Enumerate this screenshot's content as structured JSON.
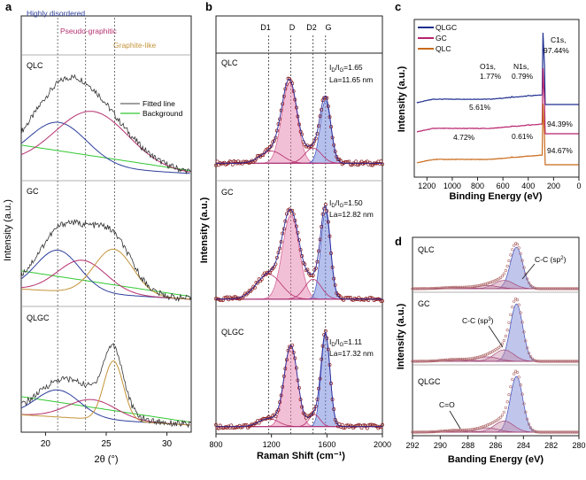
{
  "chart_data": [
    {
      "panel": "a",
      "type": "line",
      "xlabel": "2θ (°)",
      "ylabel": "Intensity (a.u.)",
      "xlim": [
        18,
        32
      ],
      "xticks": [
        20,
        25,
        30
      ],
      "region_labels": [
        "Highly disordered",
        "Pseudo-graphitic",
        "Graphite-like"
      ],
      "region_positions_2theta": [
        21.0,
        23.3,
        25.7
      ],
      "legend": [
        "Fitted line",
        "Background"
      ],
      "samples": [
        {
          "name": "QLC",
          "components": [
            {
              "center": 21.0,
              "height": 0.4,
              "width": 2.4,
              "color": "#2c3e9c"
            },
            {
              "center": 23.8,
              "height": 0.52,
              "width": 3.0,
              "color": "#b5306f"
            }
          ]
        },
        {
          "name": "GC",
          "components": [
            {
              "center": 21.0,
              "height": 0.38,
              "width": 1.8,
              "color": "#2c3e9c"
            },
            {
              "center": 23.0,
              "height": 0.3,
              "width": 2.0,
              "color": "#b5306f"
            },
            {
              "center": 25.6,
              "height": 0.42,
              "width": 1.6,
              "color": "#c4943a"
            }
          ]
        },
        {
          "name": "QLGC",
          "components": [
            {
              "center": 21.0,
              "height": 0.25,
              "width": 1.8,
              "color": "#2c3e9c"
            },
            {
              "center": 23.8,
              "height": 0.18,
              "width": 2.0,
              "color": "#b5306f"
            },
            {
              "center": 25.6,
              "height": 0.55,
              "width": 0.8,
              "color": "#c4943a"
            }
          ]
        }
      ]
    },
    {
      "panel": "b",
      "type": "line",
      "xlabel": "Raman Shift (cm⁻¹)",
      "ylabel": "Intensity (a.u.)",
      "xlim": [
        800,
        2000
      ],
      "xticks": [
        800,
        1200,
        1600,
        2000
      ],
      "band_labels": [
        "D1",
        "D",
        "D2",
        "G"
      ],
      "band_positions_cm": [
        1180,
        1340,
        1500,
        1590
      ],
      "samples": [
        {
          "name": "QLC",
          "ratio_label": "I",
          "ratio_sub1": "D",
          "ratio_sub2": "G",
          "ratio_value": "=1.65",
          "la": "La=11.65 nm",
          "components": [
            {
              "center": 1330,
              "height": 0.8,
              "width": 55,
              "color": "#d86a9a"
            },
            {
              "center": 1590,
              "height": 0.62,
              "width": 38,
              "color": "#4b62c9"
            },
            {
              "center": 1200,
              "height": 0.12,
              "width": 80,
              "color": "#b5306f"
            },
            {
              "center": 1500,
              "height": 0.15,
              "width": 60,
              "color": "#b5306f"
            }
          ]
        },
        {
          "name": "GC",
          "ratio_label": "I",
          "ratio_sub1": "D",
          "ratio_sub2": "G",
          "ratio_value": "=1.50",
          "la": "La=12.82 nm",
          "components": [
            {
              "center": 1340,
              "height": 0.85,
              "width": 60,
              "color": "#d86a9a"
            },
            {
              "center": 1590,
              "height": 0.88,
              "width": 35,
              "color": "#4b62c9"
            },
            {
              "center": 1180,
              "height": 0.25,
              "width": 90,
              "color": "#b5306f"
            },
            {
              "center": 1500,
              "height": 0.2,
              "width": 60,
              "color": "#b5306f"
            }
          ]
        },
        {
          "name": "QLGC",
          "ratio_label": "I",
          "ratio_sub1": "D",
          "ratio_sub2": "G",
          "ratio_value": "=1.11",
          "la": "La=17.32 nm",
          "components": [
            {
              "center": 1340,
              "height": 0.8,
              "width": 48,
              "color": "#d86a9a"
            },
            {
              "center": 1590,
              "height": 0.92,
              "width": 32,
              "color": "#4b62c9"
            },
            {
              "center": 1180,
              "height": 0.08,
              "width": 70,
              "color": "#b5306f"
            },
            {
              "center": 1510,
              "height": 0.12,
              "width": 40,
              "color": "#b5306f"
            }
          ]
        }
      ]
    },
    {
      "panel": "c",
      "type": "line",
      "xlabel": "Binding Energy (eV)",
      "ylabel": "Intensity (a.u.)",
      "xlim": [
        1300,
        0
      ],
      "xticks": [
        1200,
        1000,
        800,
        600,
        400,
        200,
        0
      ],
      "series": [
        {
          "name": "QLGC",
          "color": "#1f2f8f",
          "peak_C1s": "C1s,",
          "peak_C1s_pct": "97.44%",
          "peak_N1s": "N1s,",
          "peak_N1s_pct": "0.79%",
          "peak_O1s": "O1s,",
          "peak_O1s_pct": "1.77%"
        },
        {
          "name": "GC",
          "color": "#b8236c",
          "peak_O1s_pct": "5.61%",
          "peak_C1s_pct": "94.39%"
        },
        {
          "name": "QLC",
          "color": "#c96a1b",
          "peak_O1s_pct": "4.72%",
          "peak_N1s_pct": "0.61%",
          "peak_C1s_pct": "94.67%"
        }
      ]
    },
    {
      "panel": "d",
      "type": "line",
      "xlabel": "Banding Energy (eV)",
      "ylabel": "Intensity (a.u.)",
      "xlim": [
        292,
        280
      ],
      "xticks": [
        292,
        290,
        288,
        286,
        284,
        282,
        280
      ],
      "samples": [
        {
          "name": "QLC",
          "annotation": "C-C (sp",
          "annotation_sup": "2",
          "annotation_end": ")"
        },
        {
          "name": "GC",
          "annotation": "C-C (sp",
          "annotation_sup": "3",
          "annotation_end": ")"
        },
        {
          "name": "QLGC",
          "annotation": "C=O",
          "annotation_sup": "",
          "annotation_end": ""
        }
      ]
    }
  ],
  "panel_letters": [
    "a",
    "b",
    "c",
    "d"
  ]
}
